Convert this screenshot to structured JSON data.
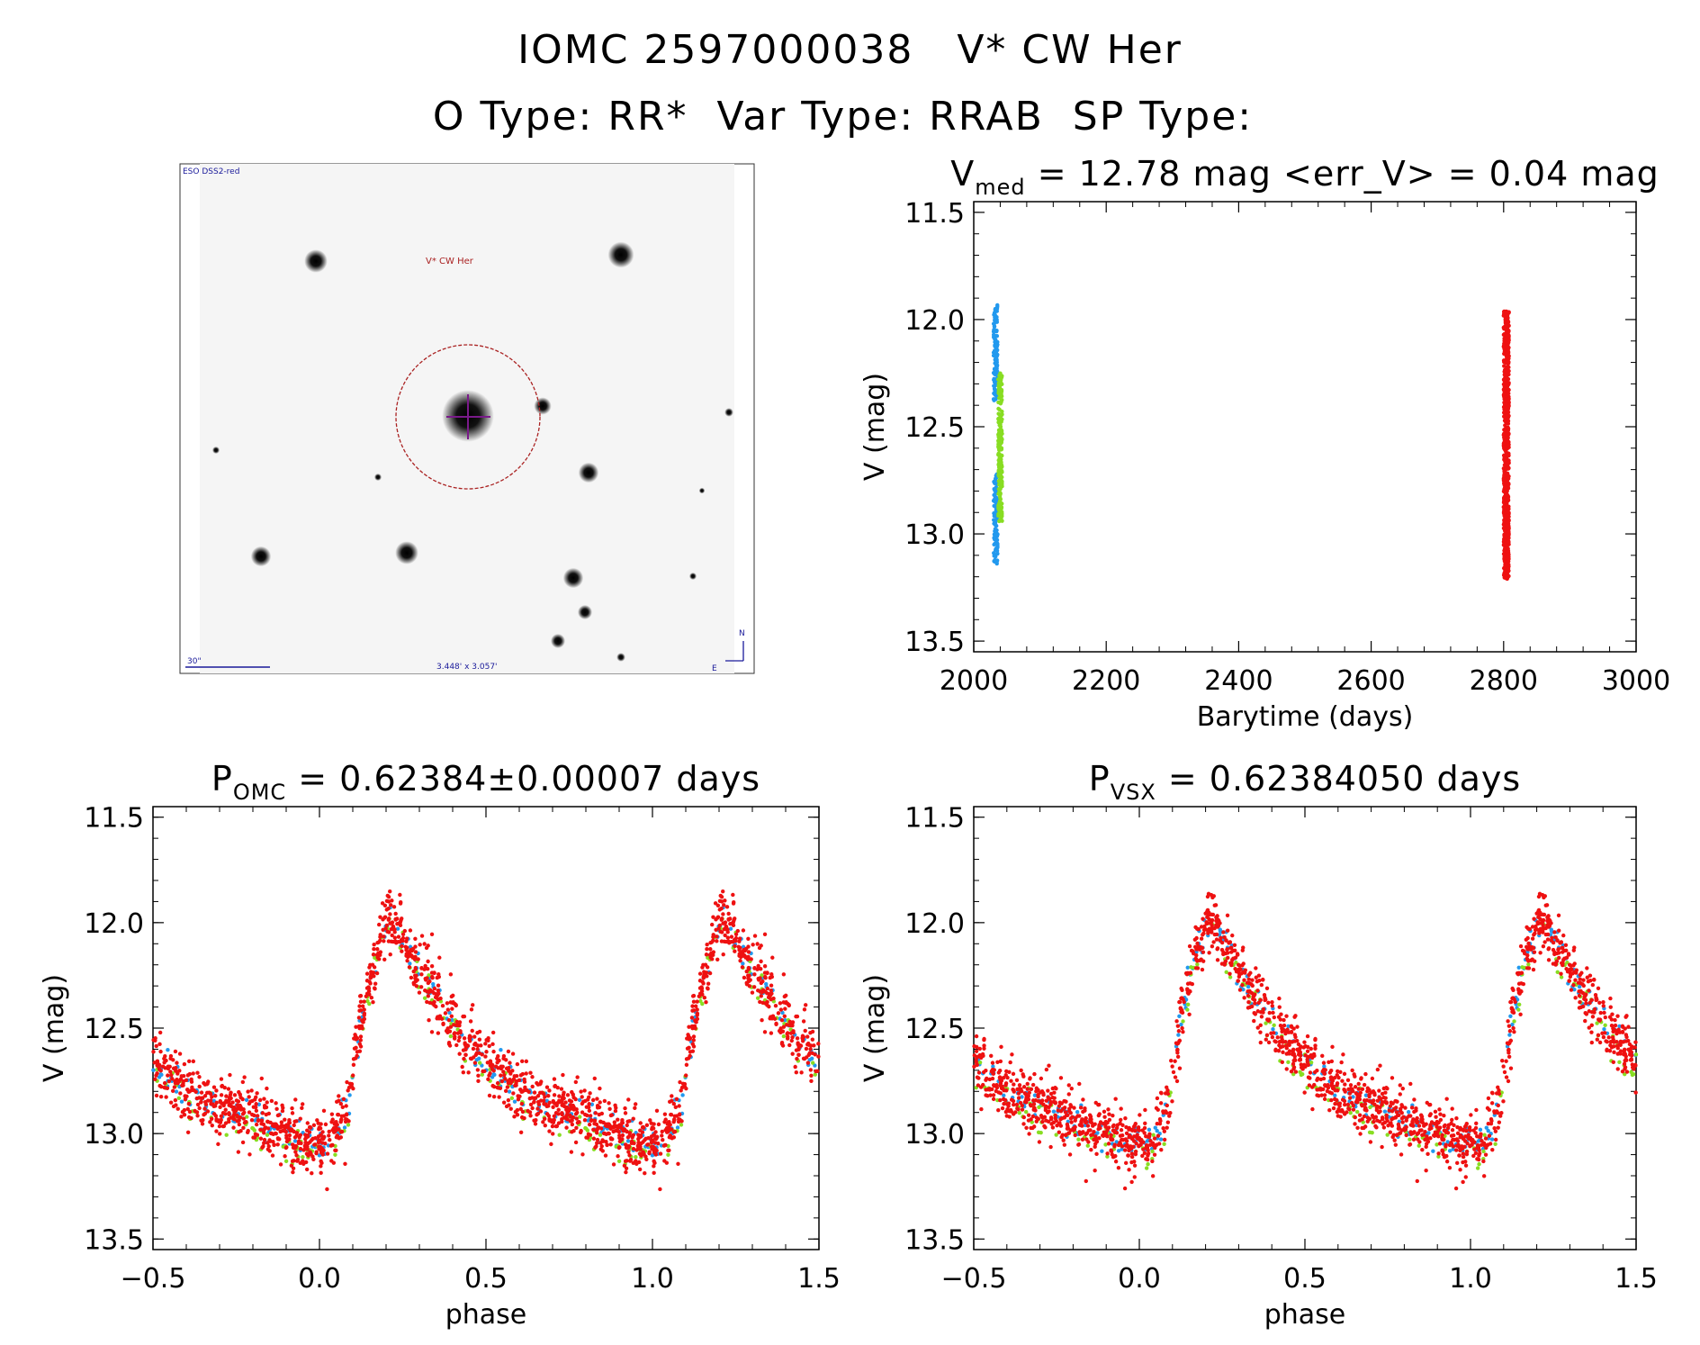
{
  "header": {
    "id": "IOMC 2597000038",
    "name": "V* CW Her",
    "otype_label": "O Type:",
    "otype": "RR*",
    "vartype_label": "Var Type:",
    "vartype": "RRAB",
    "sptype_label": "SP Type:",
    "sptype": ""
  },
  "finder": {
    "survey_label": "ESO DSS2-red",
    "target_label": "V* CW Her",
    "scale_label": "30\"",
    "fov_label": "3.448' x 3.057'",
    "north_label": "N",
    "east_label": "E"
  },
  "colors": {
    "red": "#ee1111",
    "blue": "#2299ee",
    "green": "#88dd22",
    "circle": "#aa2222",
    "cross": "#7a1a8a",
    "text_blue": "#1a1a9a"
  },
  "chart_data": [
    {
      "type": "scatter",
      "title": {
        "main": "V",
        "sub": "med",
        "rest": " = 12.78 mag <err_V> = 0.04 mag"
      },
      "xlabel": "Barytime (days)",
      "ylabel": "V (mag)",
      "xlim": [
        2000,
        3000
      ],
      "ylim": [
        13.55,
        11.45
      ],
      "y_inverted": true,
      "xticks": [
        "2000",
        "2200",
        "2400",
        "2600",
        "2800",
        "3000"
      ],
      "yticks": [
        "11.5",
        "12.0",
        "12.5",
        "13.0",
        "13.5"
      ],
      "series": [
        {
          "color": "blue",
          "x_range": [
            2030,
            2036
          ],
          "y_range": [
            11.93,
            13.14
          ]
        },
        {
          "color": "green",
          "x_range": [
            2037,
            2043
          ],
          "y_range": [
            12.25,
            12.95
          ]
        },
        {
          "color": "red",
          "x_range": [
            2800,
            2808
          ],
          "y_range": [
            11.96,
            13.21
          ]
        }
      ]
    },
    {
      "type": "scatter",
      "title": {
        "main": "P",
        "sub": "OMC",
        "rest": " = 0.62384±0.00007 days"
      },
      "xlabel": "phase",
      "ylabel": "V (mag)",
      "xlim": [
        -0.5,
        1.5
      ],
      "ylim": [
        13.55,
        11.45
      ],
      "y_inverted": true,
      "xticks": [
        "−0.5",
        "0.0",
        "0.5",
        "1.0",
        "1.5"
      ],
      "yticks": [
        "11.5",
        "12.0",
        "12.5",
        "13.0",
        "13.5"
      ],
      "template": {
        "phase": [
          0.0,
          0.05,
          0.09,
          0.11,
          0.16,
          0.21,
          0.23,
          0.3,
          0.4,
          0.5,
          0.6,
          0.7,
          0.8,
          0.9,
          1.0
        ],
        "mag": [
          13.05,
          13.02,
          12.85,
          12.58,
          12.2,
          11.96,
          12.02,
          12.22,
          12.48,
          12.66,
          12.8,
          12.87,
          12.93,
          13.0,
          13.05
        ]
      },
      "scatter_mag": 0.07,
      "series": [
        {
          "color": "red"
        },
        {
          "color": "blue"
        },
        {
          "color": "green"
        }
      ]
    },
    {
      "type": "scatter",
      "title": {
        "main": "P",
        "sub": "VSX",
        "rest": " = 0.62384050 days"
      },
      "xlabel": "phase",
      "ylabel": "V (mag)",
      "xlim": [
        -0.5,
        1.5
      ],
      "ylim": [
        13.55,
        11.45
      ],
      "y_inverted": true,
      "xticks": [
        "−0.5",
        "0.0",
        "0.5",
        "1.0",
        "1.5"
      ],
      "yticks": [
        "11.5",
        "12.0",
        "12.5",
        "13.0",
        "13.5"
      ],
      "template": {
        "phase": [
          0.0,
          0.05,
          0.09,
          0.11,
          0.16,
          0.21,
          0.23,
          0.3,
          0.4,
          0.5,
          0.6,
          0.7,
          0.8,
          0.9,
          1.0
        ],
        "mag": [
          13.05,
          13.02,
          12.85,
          12.58,
          12.2,
          11.96,
          12.02,
          12.22,
          12.48,
          12.66,
          12.8,
          12.87,
          12.93,
          13.0,
          13.05
        ]
      },
      "scatter_mag": 0.07,
      "series": [
        {
          "color": "red"
        },
        {
          "color": "blue"
        },
        {
          "color": "green"
        }
      ]
    }
  ]
}
